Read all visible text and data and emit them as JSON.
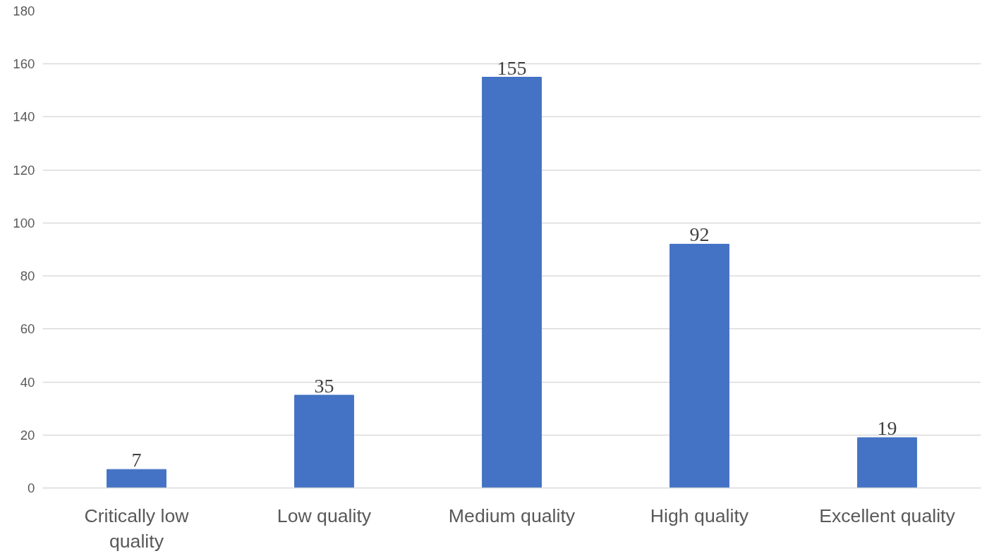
{
  "chart_data": {
    "type": "bar",
    "categories": [
      "Critically low quality",
      "Low quality",
      "Medium quality",
      "High quality",
      "Excellent quality"
    ],
    "values": [
      7,
      35,
      155,
      92,
      19
    ],
    "color": "#4472c4",
    "ylim": [
      0,
      180
    ],
    "yticks": [
      0,
      20,
      40,
      60,
      80,
      100,
      120,
      140,
      160,
      180
    ],
    "grid": "y",
    "data_labels": true
  }
}
